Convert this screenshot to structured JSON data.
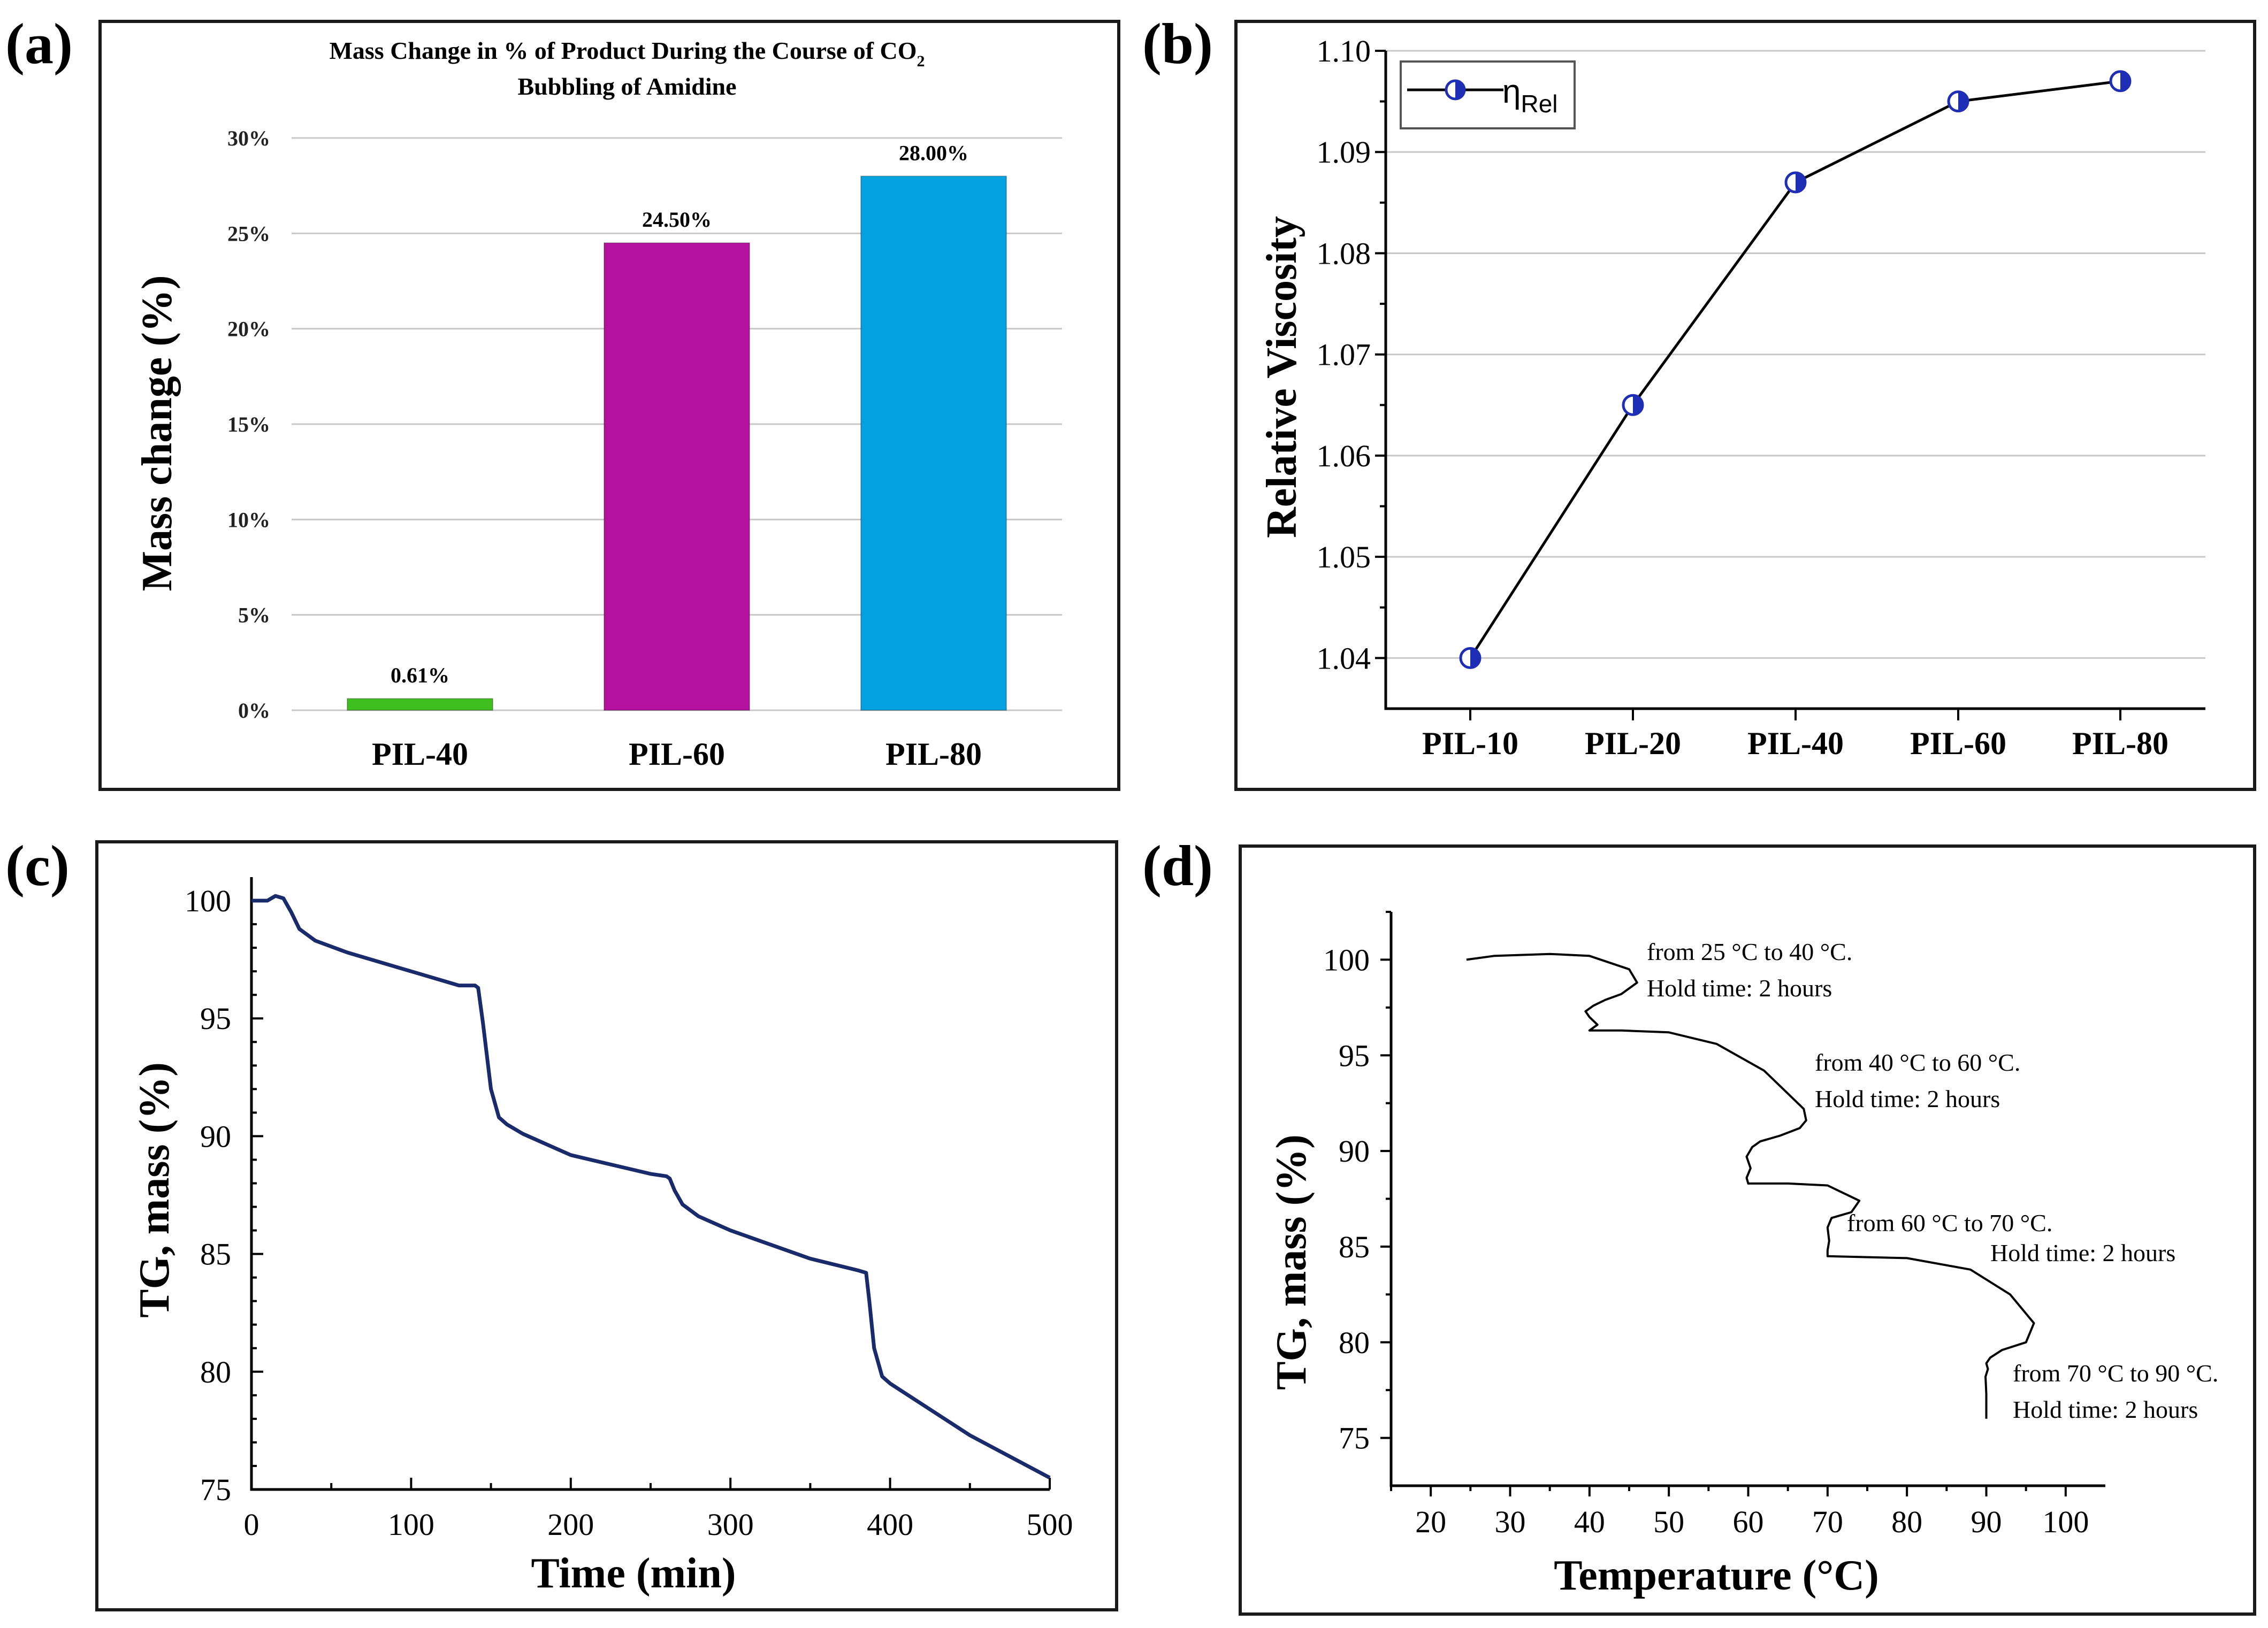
{
  "figure": {
    "panel_labels": [
      "(a)",
      "(b)",
      "(c)",
      "(d)"
    ]
  },
  "chart_data": [
    {
      "id": "a",
      "type": "bar",
      "title_line1": "Mass Change in % of Product During the Course of CO",
      "title_sub": "2",
      "title_line2": "Bubbling of Amidine",
      "xlabel": "",
      "ylabel": "Mass change  (%)",
      "categories": [
        "PIL-40",
        "PIL-60",
        "PIL-80"
      ],
      "values": [
        0.61,
        24.5,
        28.0
      ],
      "data_labels": [
        "0.61%",
        "24.50%",
        "28.00%"
      ],
      "colors": [
        "#3fbf1f",
        "#b5119f",
        "#04a1e0"
      ],
      "ylim": [
        0,
        30
      ],
      "yticks": [
        0,
        5,
        10,
        15,
        20,
        25,
        30
      ],
      "ytick_labels": [
        "0%",
        "5%",
        "10%",
        "15%",
        "20%",
        "25%",
        "30%"
      ],
      "grid": true
    },
    {
      "id": "b",
      "type": "line",
      "xlabel": "",
      "ylabel": "Relative Viscosity",
      "categories": [
        "PIL-10",
        "PIL-20",
        "PIL-40",
        "PIL-60",
        "PIL-80"
      ],
      "series": [
        {
          "name": "η",
          "name_sub": "Rel",
          "values": [
            1.04,
            1.065,
            1.087,
            1.095,
            1.097
          ]
        }
      ],
      "ylim": [
        1.035,
        1.1
      ],
      "yticks": [
        1.04,
        1.05,
        1.06,
        1.07,
        1.08,
        1.09,
        1.1
      ],
      "ytick_labels": [
        "1.04",
        "1.05",
        "1.06",
        "1.07",
        "1.08",
        "1.09",
        "1.10"
      ],
      "marker_color": "#1f2fb5",
      "legend_position": "top-left",
      "grid": true
    },
    {
      "id": "c",
      "type": "line",
      "xlabel": "Time (min)",
      "ylabel": "TG, mass (%)",
      "xlim": [
        0,
        500
      ],
      "ylim": [
        75,
        101
      ],
      "xticks": [
        0,
        100,
        200,
        300,
        400,
        500
      ],
      "xtick_labels": [
        "0",
        "100",
        "200",
        "300",
        "400",
        "500"
      ],
      "yticks": [
        75,
        80,
        85,
        90,
        95,
        100
      ],
      "ytick_labels": [
        "75",
        "80",
        "85",
        "90",
        "95",
        "100"
      ],
      "line_color": "#1a2b6b",
      "series": [
        {
          "name": "TG",
          "x": [
            0,
            10,
            15,
            20,
            25,
            30,
            40,
            60,
            100,
            130,
            140,
            142,
            145,
            150,
            155,
            160,
            170,
            200,
            250,
            260,
            262,
            265,
            270,
            280,
            300,
            350,
            380,
            385,
            387,
            390,
            395,
            400,
            450,
            500
          ],
          "y": [
            100,
            100,
            100.2,
            100.1,
            99.5,
            98.8,
            98.3,
            97.8,
            97.0,
            96.4,
            96.4,
            96.3,
            94.8,
            92.0,
            90.8,
            90.5,
            90.1,
            89.2,
            88.4,
            88.3,
            88.2,
            87.7,
            87.1,
            86.6,
            86.0,
            84.8,
            84.3,
            84.2,
            83.0,
            81.0,
            79.8,
            79.5,
            77.3,
            75.5
          ]
        }
      ]
    },
    {
      "id": "d",
      "type": "line",
      "xlabel": "Temperature (°C)",
      "ylabel": "TG, mass (%)",
      "xlim": [
        15,
        105
      ],
      "ylim": [
        72.5,
        102.5
      ],
      "xticks": [
        20,
        30,
        40,
        50,
        60,
        70,
        80,
        90,
        100
      ],
      "xtick_labels": [
        "20",
        "30",
        "40",
        "50",
        "60",
        "70",
        "80",
        "90",
        "100"
      ],
      "yticks": [
        75,
        80,
        85,
        90,
        95,
        100
      ],
      "ytick_labels": [
        "75",
        "80",
        "85",
        "90",
        "95",
        "100"
      ],
      "series": [
        {
          "name": "TG",
          "x": [
            24.5,
            28,
            35,
            40,
            45,
            46,
            44,
            42,
            40.5,
            39.5,
            40,
            41,
            40,
            40,
            44,
            50,
            56,
            62,
            65,
            67,
            67.3,
            66.5,
            64,
            61.5,
            60.5,
            59.8,
            60.3,
            59.8,
            60,
            65,
            70,
            74,
            73,
            70.5,
            70,
            70.2,
            70,
            70,
            80,
            88,
            93,
            96,
            95,
            92,
            90.5,
            90,
            90.2,
            89.9,
            90,
            90
          ],
          "y": [
            100,
            100.2,
            100.3,
            100.2,
            99.5,
            98.8,
            98.2,
            97.9,
            97.6,
            97.3,
            97.0,
            96.6,
            96.3,
            96.3,
            96.3,
            96.2,
            95.6,
            94.2,
            93.0,
            92.2,
            91.6,
            91.2,
            90.8,
            90.5,
            90.2,
            89.7,
            89.1,
            88.6,
            88.3,
            88.3,
            88.2,
            87.4,
            86.8,
            86.5,
            86.0,
            85.3,
            84.8,
            84.5,
            84.4,
            83.8,
            82.5,
            81.0,
            80.0,
            79.6,
            79.2,
            78.9,
            78.6,
            78.2,
            77.3,
            76.0
          ]
        }
      ],
      "annotations": [
        {
          "line1": "from 25 °C to 40 °C.",
          "line2": "Hold time: 2 hours"
        },
        {
          "line1": "from 40 °C to 60 °C.",
          "line2": "Hold time: 2 hours"
        },
        {
          "line1": "from 60 °C to 70 °C.",
          "line2": "Hold time: 2 hours"
        },
        {
          "line1": "from 70 °C to 90 °C.",
          "line2": "Hold time: 2 hours"
        }
      ]
    }
  ]
}
